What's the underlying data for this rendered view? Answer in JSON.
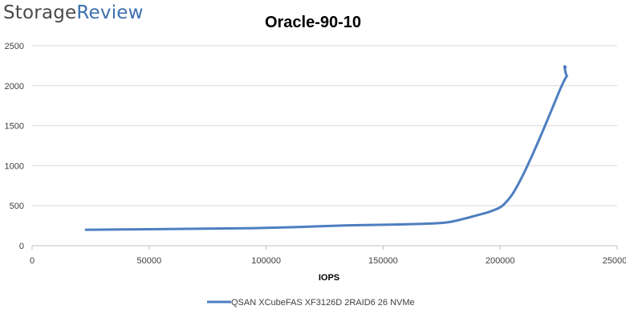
{
  "brand": {
    "part1": "Storage",
    "part2": "Review"
  },
  "colors": {
    "series": "#4e7ec0",
    "grid": "#d9d9d9",
    "axis": "#bfbfbf",
    "text": "#404040",
    "brand_dark": "#4a4a4a",
    "brand_accent": "#3c6fae"
  },
  "chart_data": {
    "type": "line",
    "title": "Oracle-90-10",
    "xlabel": "IOPS",
    "ylabel": "",
    "xlim": [
      0,
      250000
    ],
    "ylim": [
      0,
      2500
    ],
    "xticks": [
      "0",
      "50000",
      "100000",
      "150000",
      "200000",
      "250000"
    ],
    "yticks": [
      "0",
      "500",
      "1000",
      "1500",
      "2000",
      "2500"
    ],
    "grid": "horizontal",
    "legend_position": "bottom",
    "series": [
      {
        "name": "QSAN XCubeFAS XF3126D 2RAID6 26 NVMe",
        "x": [
          23000,
          45000,
          70000,
          95000,
          115000,
          135000,
          150000,
          165000,
          175000,
          180000,
          185000,
          190000,
          195000,
          200000,
          203000,
          206000,
          210000,
          214000,
          218000,
          222000,
          226000,
          228000,
          228500,
          228000,
          227500,
          228000
        ],
        "y": [
          200,
          205,
          212,
          220,
          235,
          255,
          262,
          272,
          285,
          305,
          340,
          380,
          420,
          480,
          560,
          680,
          900,
          1150,
          1420,
          1700,
          1980,
          2100,
          2120,
          2160,
          2240,
          2230
        ]
      }
    ]
  }
}
